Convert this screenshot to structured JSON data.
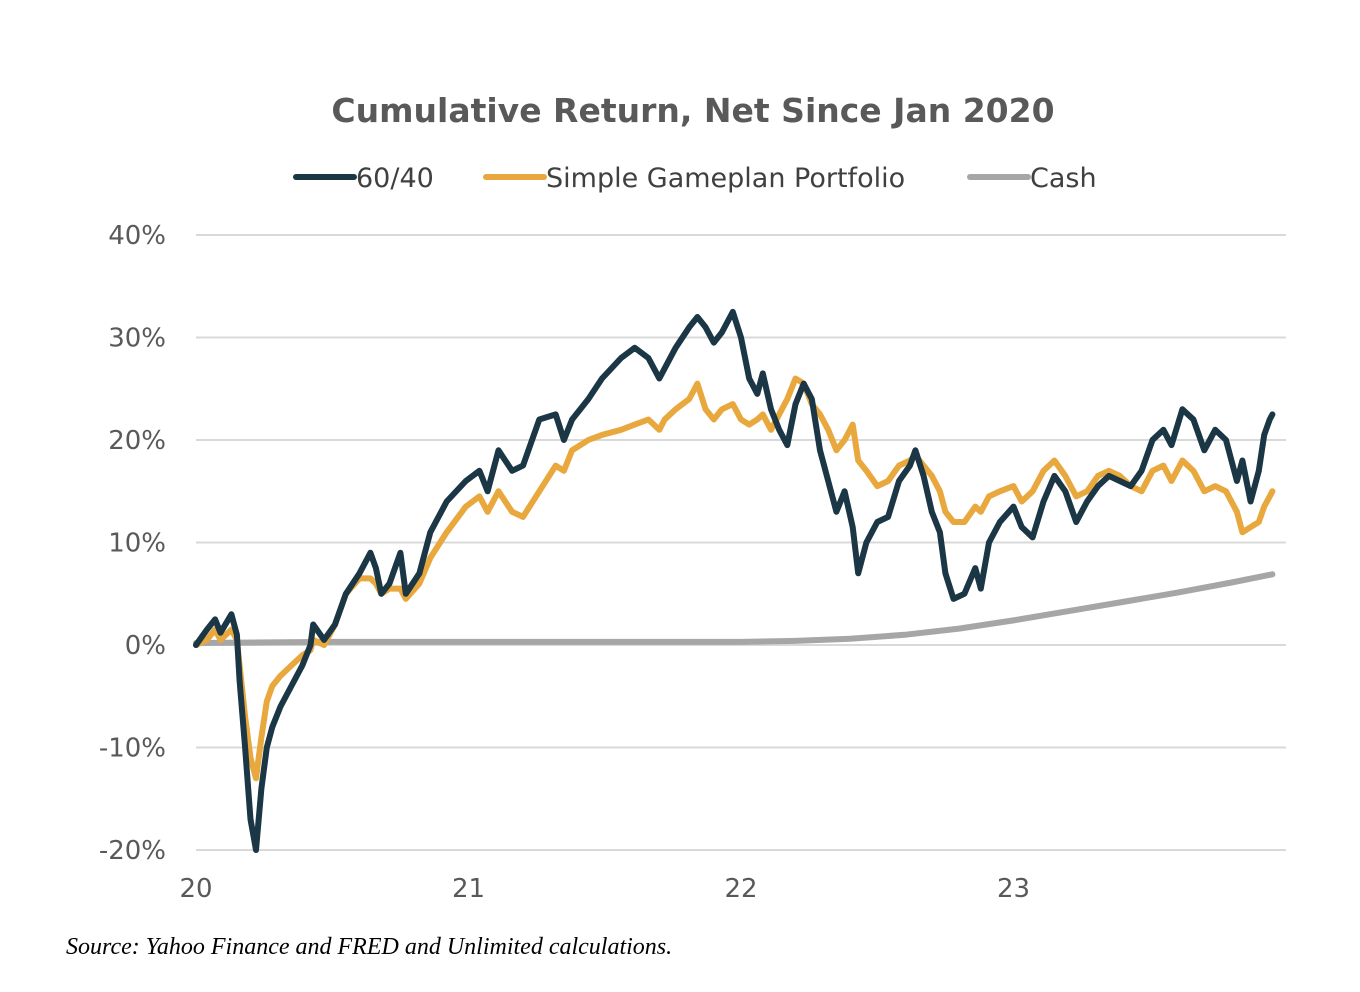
{
  "chart_data": {
    "type": "line",
    "title": "Cumulative Return, Net Since Jan 2020",
    "xlabel": "",
    "ylabel": "",
    "xlim": [
      2020.0,
      2024.0
    ],
    "ylim": [
      -20,
      40
    ],
    "x_ticks": [
      {
        "value": 2020,
        "label": "20"
      },
      {
        "value": 2021,
        "label": "21"
      },
      {
        "value": 2022,
        "label": "22"
      },
      {
        "value": 2023,
        "label": "23"
      }
    ],
    "y_ticks": [
      {
        "value": 40,
        "label": "40%"
      },
      {
        "value": 30,
        "label": "30%"
      },
      {
        "value": 20,
        "label": "20%"
      },
      {
        "value": 10,
        "label": "10%"
      },
      {
        "value": 0,
        "label": "0%"
      },
      {
        "value": -10,
        "label": "-10%"
      },
      {
        "value": -20,
        "label": "-20%"
      }
    ],
    "grid": "horizontal",
    "legend_position": "top-center",
    "series": [
      {
        "name": "60/40",
        "color": "#1b3645",
        "points": [
          [
            2020.0,
            0.0
          ],
          [
            2020.04,
            1.5
          ],
          [
            2020.07,
            2.5
          ],
          [
            2020.09,
            1.2
          ],
          [
            2020.13,
            3.0
          ],
          [
            2020.15,
            1.0
          ],
          [
            2020.16,
            -3.5
          ],
          [
            2020.18,
            -10.0
          ],
          [
            2020.2,
            -17.0
          ],
          [
            2020.22,
            -20.0
          ],
          [
            2020.24,
            -14.0
          ],
          [
            2020.26,
            -10.0
          ],
          [
            2020.28,
            -8.0
          ],
          [
            2020.31,
            -6.0
          ],
          [
            2020.35,
            -4.0
          ],
          [
            2020.39,
            -2.0
          ],
          [
            2020.42,
            0.0
          ],
          [
            2020.43,
            2.0
          ],
          [
            2020.47,
            0.5
          ],
          [
            2020.51,
            2.0
          ],
          [
            2020.55,
            5.0
          ],
          [
            2020.6,
            7.0
          ],
          [
            2020.64,
            9.0
          ],
          [
            2020.66,
            7.5
          ],
          [
            2020.68,
            5.0
          ],
          [
            2020.71,
            6.0
          ],
          [
            2020.75,
            9.0
          ],
          [
            2020.77,
            5.0
          ],
          [
            2020.82,
            7.0
          ],
          [
            2020.86,
            11.0
          ],
          [
            2020.92,
            14.0
          ],
          [
            2020.99,
            16.0
          ],
          [
            2021.04,
            17.0
          ],
          [
            2021.07,
            15.0
          ],
          [
            2021.11,
            19.0
          ],
          [
            2021.16,
            17.0
          ],
          [
            2021.2,
            17.5
          ],
          [
            2021.26,
            22.0
          ],
          [
            2021.32,
            22.5
          ],
          [
            2021.35,
            20.0
          ],
          [
            2021.38,
            22.0
          ],
          [
            2021.44,
            24.0
          ],
          [
            2021.49,
            26.0
          ],
          [
            2021.56,
            28.0
          ],
          [
            2021.61,
            29.0
          ],
          [
            2021.66,
            28.0
          ],
          [
            2021.7,
            26.0
          ],
          [
            2021.72,
            27.0
          ],
          [
            2021.76,
            29.0
          ],
          [
            2021.81,
            31.0
          ],
          [
            2021.84,
            32.0
          ],
          [
            2021.87,
            31.0
          ],
          [
            2021.9,
            29.5
          ],
          [
            2021.93,
            30.5
          ],
          [
            2021.97,
            32.5
          ],
          [
            2022.0,
            30.0
          ],
          [
            2022.03,
            26.0
          ],
          [
            2022.06,
            24.5
          ],
          [
            2022.08,
            26.5
          ],
          [
            2022.11,
            23.0
          ],
          [
            2022.14,
            21.0
          ],
          [
            2022.17,
            19.5
          ],
          [
            2022.2,
            23.5
          ],
          [
            2022.23,
            25.5
          ],
          [
            2022.26,
            24.0
          ],
          [
            2022.29,
            19.0
          ],
          [
            2022.32,
            16.0
          ],
          [
            2022.35,
            13.0
          ],
          [
            2022.38,
            15.0
          ],
          [
            2022.41,
            11.5
          ],
          [
            2022.43,
            7.0
          ],
          [
            2022.46,
            10.0
          ],
          [
            2022.5,
            12.0
          ],
          [
            2022.54,
            12.5
          ],
          [
            2022.58,
            16.0
          ],
          [
            2022.62,
            17.5
          ],
          [
            2022.64,
            19.0
          ],
          [
            2022.67,
            16.5
          ],
          [
            2022.7,
            13.0
          ],
          [
            2022.73,
            11.0
          ],
          [
            2022.75,
            7.0
          ],
          [
            2022.78,
            4.5
          ],
          [
            2022.82,
            5.0
          ],
          [
            2022.86,
            7.5
          ],
          [
            2022.88,
            5.5
          ],
          [
            2022.91,
            10.0
          ],
          [
            2022.95,
            12.0
          ],
          [
            2023.0,
            13.5
          ],
          [
            2023.03,
            11.5
          ],
          [
            2023.07,
            10.5
          ],
          [
            2023.11,
            14.0
          ],
          [
            2023.15,
            16.5
          ],
          [
            2023.19,
            15.0
          ],
          [
            2023.23,
            12.0
          ],
          [
            2023.27,
            14.0
          ],
          [
            2023.31,
            15.5
          ],
          [
            2023.35,
            16.5
          ],
          [
            2023.39,
            16.0
          ],
          [
            2023.43,
            15.5
          ],
          [
            2023.47,
            17.0
          ],
          [
            2023.51,
            20.0
          ],
          [
            2023.55,
            21.0
          ],
          [
            2023.58,
            19.5
          ],
          [
            2023.62,
            23.0
          ],
          [
            2023.66,
            22.0
          ],
          [
            2023.7,
            19.0
          ],
          [
            2023.74,
            21.0
          ],
          [
            2023.78,
            20.0
          ],
          [
            2023.82,
            16.0
          ],
          [
            2023.84,
            18.0
          ],
          [
            2023.87,
            14.0
          ],
          [
            2023.9,
            17.0
          ],
          [
            2023.92,
            20.5
          ],
          [
            2023.94,
            22.0
          ],
          [
            2023.95,
            22.5
          ]
        ]
      },
      {
        "name": "Simple Gameplan Portfolio",
        "color": "#e8a83e",
        "points": [
          [
            2020.0,
            0.0
          ],
          [
            2020.04,
            0.5
          ],
          [
            2020.07,
            1.5
          ],
          [
            2020.09,
            0.5
          ],
          [
            2020.13,
            1.5
          ],
          [
            2020.15,
            0.5
          ],
          [
            2020.16,
            -2.0
          ],
          [
            2020.18,
            -7.0
          ],
          [
            2020.2,
            -11.0
          ],
          [
            2020.22,
            -13.0
          ],
          [
            2020.24,
            -9.0
          ],
          [
            2020.26,
            -5.5
          ],
          [
            2020.28,
            -4.0
          ],
          [
            2020.31,
            -3.0
          ],
          [
            2020.35,
            -2.0
          ],
          [
            2020.39,
            -1.0
          ],
          [
            2020.42,
            -0.5
          ],
          [
            2020.43,
            0.5
          ],
          [
            2020.47,
            0.0
          ],
          [
            2020.51,
            2.0
          ],
          [
            2020.55,
            5.0
          ],
          [
            2020.6,
            6.5
          ],
          [
            2020.64,
            6.5
          ],
          [
            2020.66,
            6.0
          ],
          [
            2020.68,
            5.0
          ],
          [
            2020.71,
            5.5
          ],
          [
            2020.75,
            5.5
          ],
          [
            2020.77,
            4.5
          ],
          [
            2020.82,
            6.0
          ],
          [
            2020.86,
            8.5
          ],
          [
            2020.92,
            11.0
          ],
          [
            2020.99,
            13.5
          ],
          [
            2021.04,
            14.5
          ],
          [
            2021.07,
            13.0
          ],
          [
            2021.11,
            15.0
          ],
          [
            2021.16,
            13.0
          ],
          [
            2021.2,
            12.5
          ],
          [
            2021.26,
            15.0
          ],
          [
            2021.32,
            17.5
          ],
          [
            2021.35,
            17.0
          ],
          [
            2021.38,
            19.0
          ],
          [
            2021.44,
            20.0
          ],
          [
            2021.49,
            20.5
          ],
          [
            2021.56,
            21.0
          ],
          [
            2021.61,
            21.5
          ],
          [
            2021.66,
            22.0
          ],
          [
            2021.7,
            21.0
          ],
          [
            2021.72,
            22.0
          ],
          [
            2021.76,
            23.0
          ],
          [
            2021.81,
            24.0
          ],
          [
            2021.84,
            25.5
          ],
          [
            2021.87,
            23.0
          ],
          [
            2021.9,
            22.0
          ],
          [
            2021.93,
            23.0
          ],
          [
            2021.97,
            23.5
          ],
          [
            2022.0,
            22.0
          ],
          [
            2022.03,
            21.5
          ],
          [
            2022.06,
            22.0
          ],
          [
            2022.08,
            22.5
          ],
          [
            2022.11,
            21.0
          ],
          [
            2022.14,
            22.5
          ],
          [
            2022.17,
            24.0
          ],
          [
            2022.2,
            26.0
          ],
          [
            2022.23,
            25.5
          ],
          [
            2022.26,
            23.5
          ],
          [
            2022.29,
            22.5
          ],
          [
            2022.32,
            21.0
          ],
          [
            2022.35,
            19.0
          ],
          [
            2022.38,
            20.0
          ],
          [
            2022.41,
            21.5
          ],
          [
            2022.43,
            18.0
          ],
          [
            2022.46,
            17.0
          ],
          [
            2022.5,
            15.5
          ],
          [
            2022.54,
            16.0
          ],
          [
            2022.58,
            17.5
          ],
          [
            2022.62,
            18.0
          ],
          [
            2022.64,
            18.5
          ],
          [
            2022.67,
            17.5
          ],
          [
            2022.7,
            16.5
          ],
          [
            2022.73,
            15.0
          ],
          [
            2022.75,
            13.0
          ],
          [
            2022.78,
            12.0
          ],
          [
            2022.82,
            12.0
          ],
          [
            2022.86,
            13.5
          ],
          [
            2022.88,
            13.0
          ],
          [
            2022.91,
            14.5
          ],
          [
            2022.95,
            15.0
          ],
          [
            2023.0,
            15.5
          ],
          [
            2023.03,
            14.0
          ],
          [
            2023.07,
            15.0
          ],
          [
            2023.11,
            17.0
          ],
          [
            2023.15,
            18.0
          ],
          [
            2023.19,
            16.5
          ],
          [
            2023.23,
            14.5
          ],
          [
            2023.27,
            15.0
          ],
          [
            2023.31,
            16.5
          ],
          [
            2023.35,
            17.0
          ],
          [
            2023.39,
            16.5
          ],
          [
            2023.43,
            15.5
          ],
          [
            2023.47,
            15.0
          ],
          [
            2023.51,
            17.0
          ],
          [
            2023.55,
            17.5
          ],
          [
            2023.58,
            16.0
          ],
          [
            2023.62,
            18.0
          ],
          [
            2023.66,
            17.0
          ],
          [
            2023.7,
            15.0
          ],
          [
            2023.74,
            15.5
          ],
          [
            2023.78,
            15.0
          ],
          [
            2023.82,
            13.0
          ],
          [
            2023.84,
            11.0
          ],
          [
            2023.87,
            11.5
          ],
          [
            2023.9,
            12.0
          ],
          [
            2023.92,
            13.5
          ],
          [
            2023.94,
            14.5
          ],
          [
            2023.95,
            15.0
          ]
        ]
      },
      {
        "name": "Cash",
        "color": "#a6a6a6",
        "points": [
          [
            2020.0,
            0.2
          ],
          [
            2020.5,
            0.3
          ],
          [
            2021.0,
            0.3
          ],
          [
            2021.5,
            0.3
          ],
          [
            2022.0,
            0.3
          ],
          [
            2022.2,
            0.4
          ],
          [
            2022.4,
            0.6
          ],
          [
            2022.6,
            1.0
          ],
          [
            2022.8,
            1.6
          ],
          [
            2023.0,
            2.4
          ],
          [
            2023.2,
            3.3
          ],
          [
            2023.4,
            4.2
          ],
          [
            2023.6,
            5.1
          ],
          [
            2023.8,
            6.1
          ],
          [
            2023.95,
            6.9
          ]
        ]
      }
    ]
  },
  "source_note": "Source: Yahoo Finance and FRED and Unlimited calculations."
}
